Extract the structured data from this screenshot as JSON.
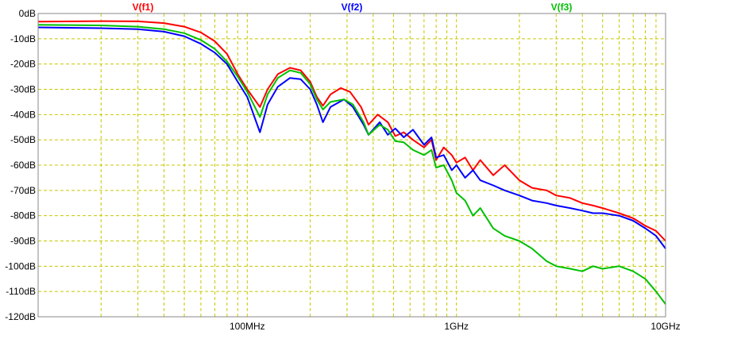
{
  "chart_data": {
    "type": "line",
    "x_scale": "log",
    "xlim_hz": [
      10000000,
      10000000000
    ],
    "ylim": [
      -120,
      0
    ],
    "y_unit": "dB",
    "grid": "dashed",
    "y_ticks": [
      {
        "value": 0,
        "label": "0dB"
      },
      {
        "value": -10,
        "label": "-10dB"
      },
      {
        "value": -20,
        "label": "-20dB"
      },
      {
        "value": -30,
        "label": "-30dB"
      },
      {
        "value": -40,
        "label": "-40dB"
      },
      {
        "value": -50,
        "label": "-50dB"
      },
      {
        "value": -60,
        "label": "-60dB"
      },
      {
        "value": -70,
        "label": "-70dB"
      },
      {
        "value": -80,
        "label": "-80dB"
      },
      {
        "value": -90,
        "label": "-90dB"
      },
      {
        "value": -100,
        "label": "-100dB"
      },
      {
        "value": -110,
        "label": "-110dB"
      },
      {
        "value": -120,
        "label": "-120dB"
      }
    ],
    "x_ticks": [
      {
        "value_hz": 100000000,
        "label": "100MHz"
      },
      {
        "value_hz": 1000000000,
        "label": "1GHz"
      },
      {
        "value_hz": 10000000000,
        "label": "10GHz"
      }
    ],
    "series": [
      {
        "name": "V(f1)",
        "color": "#ff0000",
        "points_hz_db": [
          [
            10000000,
            -3.2
          ],
          [
            20000000,
            -3.0
          ],
          [
            30000000,
            -3.1
          ],
          [
            40000000,
            -3.8
          ],
          [
            50000000,
            -5.2
          ],
          [
            60000000,
            -7.5
          ],
          [
            70000000,
            -11
          ],
          [
            80000000,
            -16
          ],
          [
            90000000,
            -24
          ],
          [
            100000000,
            -30
          ],
          [
            115000000,
            -37
          ],
          [
            125000000,
            -30
          ],
          [
            140000000,
            -24
          ],
          [
            160000000,
            -21.5
          ],
          [
            180000000,
            -22.5
          ],
          [
            200000000,
            -27
          ],
          [
            215000000,
            -33
          ],
          [
            230000000,
            -36.5
          ],
          [
            250000000,
            -32
          ],
          [
            280000000,
            -29.5
          ],
          [
            310000000,
            -31
          ],
          [
            350000000,
            -37
          ],
          [
            380000000,
            -44
          ],
          [
            420000000,
            -40
          ],
          [
            470000000,
            -43
          ],
          [
            510000000,
            -48.5
          ],
          [
            560000000,
            -47
          ],
          [
            620000000,
            -50
          ],
          [
            700000000,
            -53
          ],
          [
            760000000,
            -50
          ],
          [
            800000000,
            -58
          ],
          [
            870000000,
            -53
          ],
          [
            950000000,
            -56
          ],
          [
            1000000000,
            -59
          ],
          [
            1100000000,
            -57
          ],
          [
            1200000000,
            -62
          ],
          [
            1300000000,
            -58
          ],
          [
            1500000000,
            -64
          ],
          [
            1700000000,
            -60
          ],
          [
            2000000000,
            -66
          ],
          [
            2300000000,
            -69
          ],
          [
            2700000000,
            -70
          ],
          [
            3000000000,
            -72
          ],
          [
            3500000000,
            -73
          ],
          [
            4000000000,
            -75
          ],
          [
            4500000000,
            -76
          ],
          [
            5000000000,
            -77
          ],
          [
            6000000000,
            -79
          ],
          [
            7000000000,
            -81
          ],
          [
            8000000000,
            -84
          ],
          [
            9000000000,
            -86
          ],
          [
            10000000000,
            -90
          ]
        ]
      },
      {
        "name": "V(f2)",
        "color": "#0000ff",
        "points_hz_db": [
          [
            10000000,
            -5.5
          ],
          [
            20000000,
            -5.8
          ],
          [
            30000000,
            -6.2
          ],
          [
            40000000,
            -7.2
          ],
          [
            50000000,
            -9
          ],
          [
            60000000,
            -12
          ],
          [
            70000000,
            -15.5
          ],
          [
            80000000,
            -20
          ],
          [
            90000000,
            -27
          ],
          [
            100000000,
            -33
          ],
          [
            115000000,
            -47
          ],
          [
            125000000,
            -36
          ],
          [
            140000000,
            -29
          ],
          [
            160000000,
            -25.5
          ],
          [
            180000000,
            -26
          ],
          [
            200000000,
            -30
          ],
          [
            215000000,
            -36
          ],
          [
            230000000,
            -43
          ],
          [
            250000000,
            -37
          ],
          [
            290000000,
            -34
          ],
          [
            320000000,
            -37
          ],
          [
            360000000,
            -44
          ],
          [
            380000000,
            -48
          ],
          [
            430000000,
            -43
          ],
          [
            470000000,
            -48
          ],
          [
            510000000,
            -45.5
          ],
          [
            560000000,
            -49
          ],
          [
            620000000,
            -46
          ],
          [
            700000000,
            -52
          ],
          [
            760000000,
            -49
          ],
          [
            800000000,
            -57
          ],
          [
            870000000,
            -56
          ],
          [
            950000000,
            -62
          ],
          [
            1000000000,
            -60
          ],
          [
            1100000000,
            -65
          ],
          [
            1200000000,
            -62
          ],
          [
            1300000000,
            -66
          ],
          [
            1500000000,
            -68
          ],
          [
            1700000000,
            -70
          ],
          [
            2000000000,
            -72
          ],
          [
            2300000000,
            -74
          ],
          [
            2700000000,
            -75
          ],
          [
            3000000000,
            -76
          ],
          [
            3500000000,
            -77
          ],
          [
            4000000000,
            -78
          ],
          [
            4500000000,
            -79
          ],
          [
            5000000000,
            -79
          ],
          [
            6000000000,
            -80
          ],
          [
            7000000000,
            -82
          ],
          [
            8000000000,
            -85
          ],
          [
            9000000000,
            -88
          ],
          [
            10000000000,
            -93
          ]
        ]
      },
      {
        "name": "V(f3)",
        "color": "#00c000",
        "points_hz_db": [
          [
            10000000,
            -4.5
          ],
          [
            20000000,
            -4.7
          ],
          [
            30000000,
            -5.2
          ],
          [
            40000000,
            -6.2
          ],
          [
            50000000,
            -7.8
          ],
          [
            60000000,
            -10.5
          ],
          [
            70000000,
            -14
          ],
          [
            80000000,
            -19
          ],
          [
            90000000,
            -25
          ],
          [
            100000000,
            -31
          ],
          [
            115000000,
            -41
          ],
          [
            125000000,
            -32
          ],
          [
            140000000,
            -25.5
          ],
          [
            160000000,
            -22.5
          ],
          [
            180000000,
            -23.5
          ],
          [
            200000000,
            -28
          ],
          [
            215000000,
            -34
          ],
          [
            230000000,
            -38
          ],
          [
            250000000,
            -35
          ],
          [
            290000000,
            -34
          ],
          [
            320000000,
            -36
          ],
          [
            360000000,
            -43
          ],
          [
            380000000,
            -48
          ],
          [
            430000000,
            -44
          ],
          [
            470000000,
            -46
          ],
          [
            510000000,
            -50.5
          ],
          [
            560000000,
            -51
          ],
          [
            620000000,
            -54
          ],
          [
            700000000,
            -56
          ],
          [
            760000000,
            -54
          ],
          [
            800000000,
            -61
          ],
          [
            870000000,
            -60
          ],
          [
            950000000,
            -66
          ],
          [
            1000000000,
            -71
          ],
          [
            1100000000,
            -74
          ],
          [
            1200000000,
            -80
          ],
          [
            1300000000,
            -77
          ],
          [
            1500000000,
            -85
          ],
          [
            1700000000,
            -88
          ],
          [
            2000000000,
            -90
          ],
          [
            2300000000,
            -93
          ],
          [
            2700000000,
            -98
          ],
          [
            3000000000,
            -100
          ],
          [
            3500000000,
            -101
          ],
          [
            4000000000,
            -102
          ],
          [
            4500000000,
            -100
          ],
          [
            5000000000,
            -101
          ],
          [
            6000000000,
            -100
          ],
          [
            7000000000,
            -102
          ],
          [
            8000000000,
            -105
          ],
          [
            9000000000,
            -110
          ],
          [
            10000000000,
            -115
          ]
        ]
      }
    ]
  }
}
